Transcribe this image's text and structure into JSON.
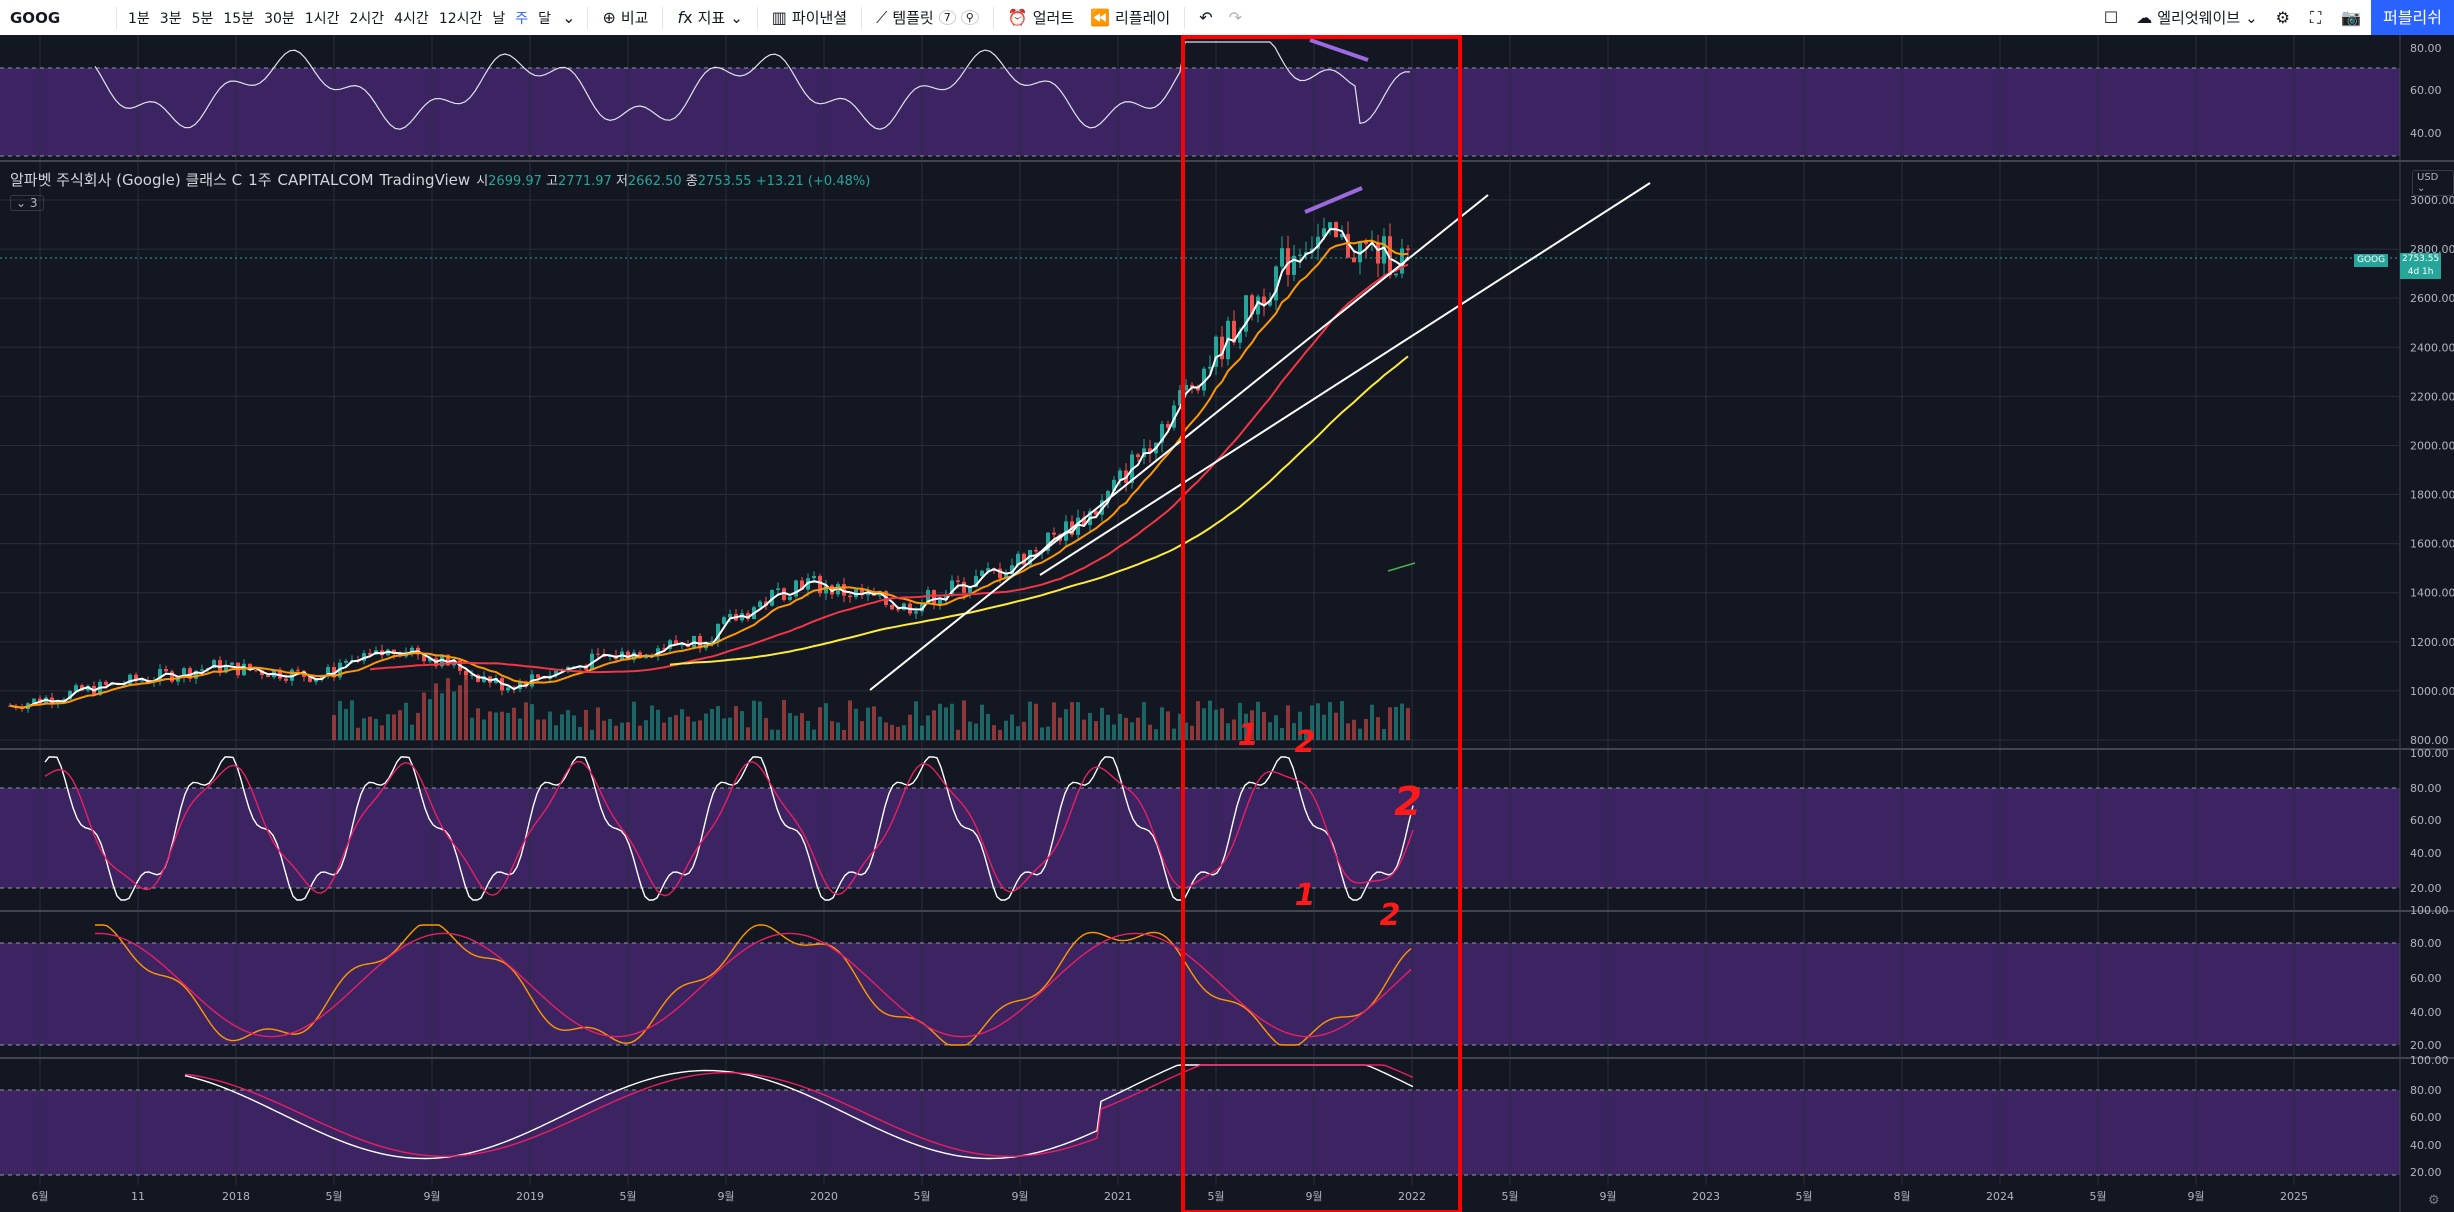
{
  "toolbar": {
    "symbol": "GOOG",
    "intervals": [
      "1분",
      "3분",
      "5분",
      "15분",
      "30분",
      "1시간",
      "2시간",
      "4시간",
      "12시간",
      "날",
      "주",
      "달"
    ],
    "active_interval": "주",
    "compare_label": "비교",
    "indicators_label": "지표",
    "financials_label": "파이낸셜",
    "templates_label": "템플릿",
    "alert_label": "얼러트",
    "replay_label": "리플레이",
    "layout_label": "엘리엇웨이브",
    "publish_label": "퍼블리쉬"
  },
  "legend": {
    "name": "알파벳 주식회사 (Google) 클래스 C",
    "interval": "1주",
    "exchange": "CAPITALCOM",
    "source": "TradingView",
    "open_label": "시",
    "open": "2699.97",
    "high_label": "고",
    "high": "2771.97",
    "low_label": "저",
    "low": "2662.50",
    "close_label": "종",
    "close": "2753.55",
    "change": "+13.21 (+0.48%)",
    "collapse": "3"
  },
  "price_tag": {
    "symbol": "GOOG",
    "value": "2753.55",
    "time": "4d 1h"
  },
  "currency": "USD",
  "annotations": [
    "1",
    "2",
    "2",
    "1",
    "2"
  ],
  "colors": {
    "up": "#26a69a",
    "down": "#ef5350",
    "ma_white": "#ffffff",
    "ma_orange": "#ff9800",
    "ma_red": "#f23645",
    "ma_yellow": "#ffeb3b",
    "highlight": "#ff0000",
    "band": "#4b2a78"
  },
  "chart_data": {
    "type": "line",
    "title": "",
    "x": [
      "2017-06",
      "2017-11",
      "2018-01",
      "2018-05",
      "2018-09",
      "2019-01",
      "2019-05",
      "2019-09",
      "2020-01",
      "2020-05",
      "2020-09",
      "2021-01",
      "2021-05",
      "2021-09",
      "2022-01"
    ],
    "series": [
      {
        "values": [
          940,
          1030,
          1100,
          1060,
          1180,
          1020,
          1130,
          1210,
          1450,
          1340,
          1500,
          1750,
          2300,
          2850,
          2753
        ]
      }
    ],
    "price_ticks": [
      "3000.00",
      "2800.00",
      "2600.00",
      "2400.00",
      "2200.00",
      "2000.00",
      "1800.00",
      "1600.00",
      "1400.00",
      "1200.00",
      "1000.00",
      "800.00"
    ],
    "oscillator_ticks": [
      "100.00",
      "80.00",
      "60.00",
      "40.00",
      "20.00"
    ],
    "rsi_ticks": [
      "80.00",
      "60.00",
      "40.00"
    ],
    "time_labels": [
      "6월",
      "11",
      "2018",
      "5월",
      "9월",
      "2019",
      "5월",
      "9월",
      "2020",
      "5월",
      "9월",
      "2021",
      "5월",
      "9월",
      "2022",
      "5월",
      "9월",
      "2023",
      "5월",
      "8월",
      "2024",
      "5월",
      "9월",
      "2025"
    ],
    "ylim": [
      800,
      3100
    ]
  }
}
